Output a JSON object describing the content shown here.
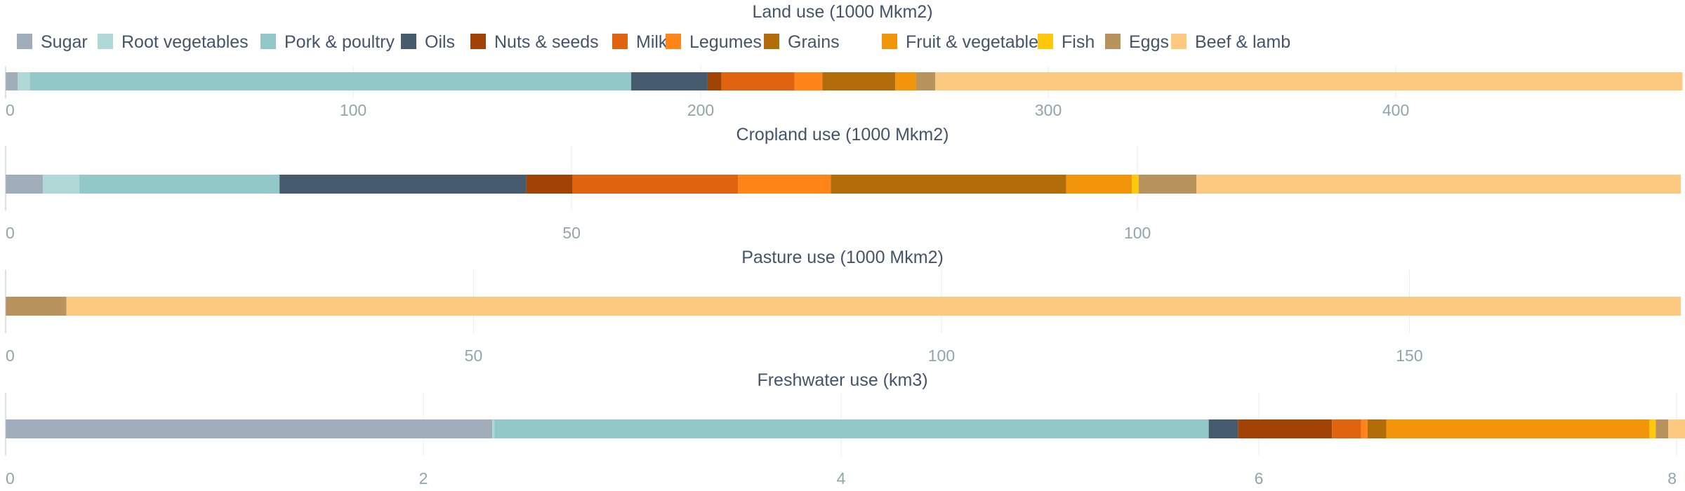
{
  "chart_data": {
    "type": "bar",
    "orientation": "horizontal",
    "stacked": true,
    "legend": {
      "placement": "top-left",
      "entries": [
        "Sugar",
        "Root vegetables",
        "Pork & poultry",
        "Oils",
        "Nuts & seeds",
        "Milk",
        "Legumes",
        "Grains",
        "Fruit & vegetables",
        "Fish",
        "Eggs",
        "Beef & lamb"
      ]
    },
    "colors": {
      "Sugar": "#a2adbb",
      "Root vegetables": "#b0d8d6",
      "Pork & poultry": "#93c8c8",
      "Oils": "#475b6e",
      "Nuts & seeds": "#a14305",
      "Milk": "#e0630f",
      "Legumes": "#ff8519",
      "Grains": "#b36c0a",
      "Fruit & vegetables": "#f2950a",
      "Fish": "#ffc80a",
      "Eggs": "#b8935d",
      "Beef & lamb": "#fdc87f"
    },
    "grid": true,
    "panels": [
      {
        "title": "Land use (1000 Mkm2)",
        "xlim": [
          0,
          482
        ],
        "ticks": [
          0,
          100,
          200,
          300,
          400
        ],
        "values": {
          "Sugar": 3.5,
          "Root vegetables": 3.5,
          "Pork & poultry": 173,
          "Oils": 22,
          "Nuts & seeds": 4,
          "Milk": 21,
          "Legumes": 8,
          "Grains": 21,
          "Fruit & vegetables": 6,
          "Fish": 0,
          "Eggs": 5.5,
          "Beef & lamb": 215
        }
      },
      {
        "title": "Cropland use (1000 Mkm2)",
        "xlim": [
          0,
          148
        ],
        "ticks": [
          0,
          50,
          100
        ],
        "values": {
          "Sugar": 3.3,
          "Root vegetables": 3.2,
          "Pork & poultry": 17.7,
          "Oils": 21.8,
          "Nuts & seeds": 4.1,
          "Milk": 14.6,
          "Legumes": 8.2,
          "Grains": 20.8,
          "Fruit & vegetables": 5.8,
          "Fish": 0.6,
          "Eggs": 5.1,
          "Beef & lamb": 42.8
        }
      },
      {
        "title": "Pasture use (1000 Mkm2)",
        "xlim": [
          0,
          179
        ],
        "ticks": [
          0,
          50,
          100,
          150
        ],
        "values": {
          "Sugar": 0,
          "Root vegetables": 0,
          "Pork & poultry": 0,
          "Oils": 0,
          "Nuts & seeds": 0,
          "Milk": 0,
          "Legumes": 0,
          "Grains": 0,
          "Fruit & vegetables": 0,
          "Fish": 0,
          "Eggs": 6.5,
          "Beef & lamb": 172.5
        }
      },
      {
        "title": "Freshwater use (km3)",
        "xlim": [
          0,
          8.02
        ],
        "ticks": [
          0,
          2,
          4,
          6,
          8
        ],
        "values": {
          "Sugar": 2.33,
          "Root vegetables": 0.01,
          "Pork & poultry": 3.42,
          "Oils": 0.14,
          "Nuts & seeds": 0.45,
          "Milk": 0.14,
          "Legumes": 0.03,
          "Grains": 0.09,
          "Fruit & vegetables": 1.26,
          "Fish": 0.03,
          "Eggs": 0.06,
          "Beef & lamb": 0.08
        }
      }
    ]
  }
}
